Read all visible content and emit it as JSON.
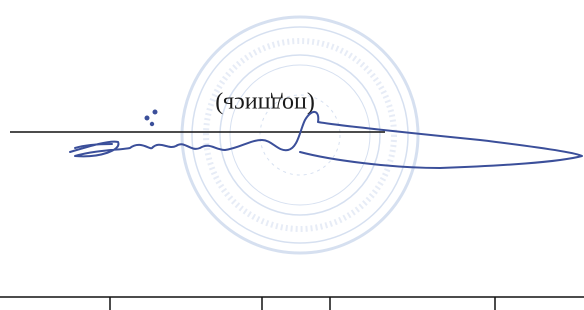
{
  "document": {
    "caption": "(подпись)"
  }
}
